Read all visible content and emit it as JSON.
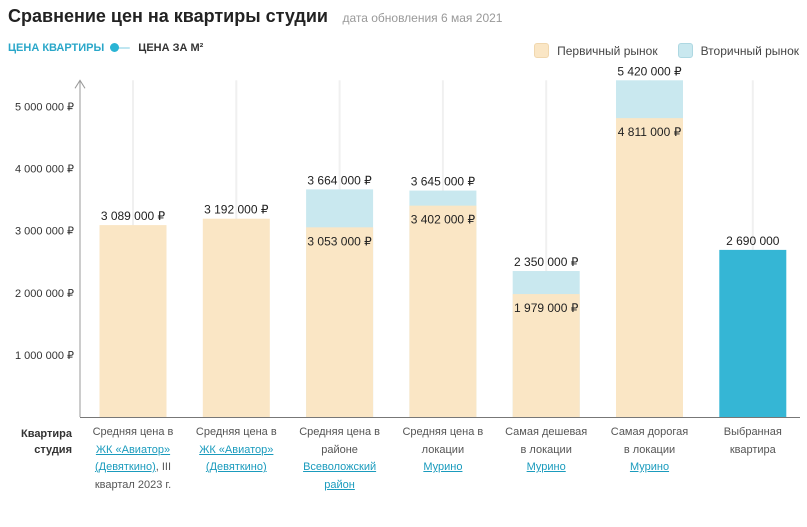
{
  "header": {
    "title": "Сравнение цен на квартиры студии",
    "date": "дата обновления 6 мая 2021"
  },
  "toggle": {
    "option_a": "ЦЕНА КВАРТИРЫ",
    "option_b": "ЦЕНА ЗА М²",
    "active": "option_a"
  },
  "row_label": [
    "Квартира",
    "студия"
  ],
  "colors": {
    "primary_market": "#fae6c5",
    "secondary_market": "#c9e8ef",
    "selected": "#35b6d5",
    "accent": "#2ab4d4",
    "link": "#1a9bbd"
  },
  "categories_text": [
    {
      "lines": [
        {
          "text": "Средняя цена в"
        },
        {
          "text": "ЖК «Авиатор»",
          "link": true
        },
        {
          "text": "(Девяткино)",
          "link": true,
          "suffix": ", III"
        },
        {
          "text": "квартал 2023 г."
        }
      ]
    },
    {
      "lines": [
        {
          "text": "Средняя цена в"
        },
        {
          "text": "ЖК «Авиатор»",
          "link": true
        },
        {
          "text": "(Девяткино)",
          "link": true
        }
      ]
    },
    {
      "lines": [
        {
          "text": "Средняя цена в"
        },
        {
          "text": "районе"
        },
        {
          "text": "Всеволожский",
          "link": true
        },
        {
          "text": "район",
          "link": true
        }
      ]
    },
    {
      "lines": [
        {
          "text": "Средняя цена в"
        },
        {
          "text": "локации"
        },
        {
          "text": "Мурино",
          "link": true
        }
      ]
    },
    {
      "lines": [
        {
          "text": "Самая дешевая"
        },
        {
          "text": "в локации"
        },
        {
          "text": "Мурино",
          "link": true
        }
      ]
    },
    {
      "lines": [
        {
          "text": "Самая дорогая"
        },
        {
          "text": "в локации"
        },
        {
          "text": "Мурино",
          "link": true
        }
      ]
    },
    {
      "lines": [
        {
          "text": "Выбранная"
        },
        {
          "text": "квартира"
        }
      ]
    }
  ],
  "chart_data": {
    "type": "bar",
    "title": "Сравнение цен на квартиры студии",
    "ylim": [
      0,
      5420000
    ],
    "yticks": [
      1000000,
      2000000,
      3000000,
      4000000,
      5000000
    ],
    "ytick_labels": [
      "1 000 000 ₽",
      "2 000 000 ₽",
      "3 000 000 ₽",
      "4 000 000 ₽",
      "5 000 000 ₽"
    ],
    "grid": "vertical",
    "legend": {
      "position": "top-right",
      "entries": [
        "Первичный рынок",
        "Вторичный рынок"
      ]
    },
    "categories": [
      "Средняя цена в ЖК «Авиатор» (Девяткино), III квартал 2023 г.",
      "Средняя цена в ЖК «Авиатор» (Девяткино)",
      "Средняя цена в районе Всеволожский район",
      "Средняя цена в локации Мурино",
      "Самая дешевая в локации Мурино",
      "Самая дорогая в локации Мурино",
      "Выбранная квартира"
    ],
    "series": [
      {
        "name": "Первичный рынок",
        "values": [
          3089000,
          3192000,
          3053000,
          3402000,
          1979000,
          4811000,
          null
        ],
        "labels": [
          "3 089 000 ₽",
          "3 192 000 ₽",
          "3 053 000 ₽",
          "3 402 000 ₽",
          "1 979 000 ₽",
          "4 811 000 ₽",
          null
        ]
      },
      {
        "name": "Вторичный рынок",
        "values": [
          null,
          null,
          3664000,
          3645000,
          2350000,
          5420000,
          null
        ],
        "labels": [
          null,
          null,
          "3 664 000 ₽",
          "3 645 000 ₽",
          "2 350 000 ₽",
          "5 420 000 ₽",
          null
        ]
      },
      {
        "name": "",
        "values": [
          null,
          null,
          null,
          null,
          null,
          null,
          2690000
        ],
        "labels": [
          null,
          null,
          null,
          null,
          null,
          null,
          "2 690 000"
        ]
      }
    ]
  }
}
